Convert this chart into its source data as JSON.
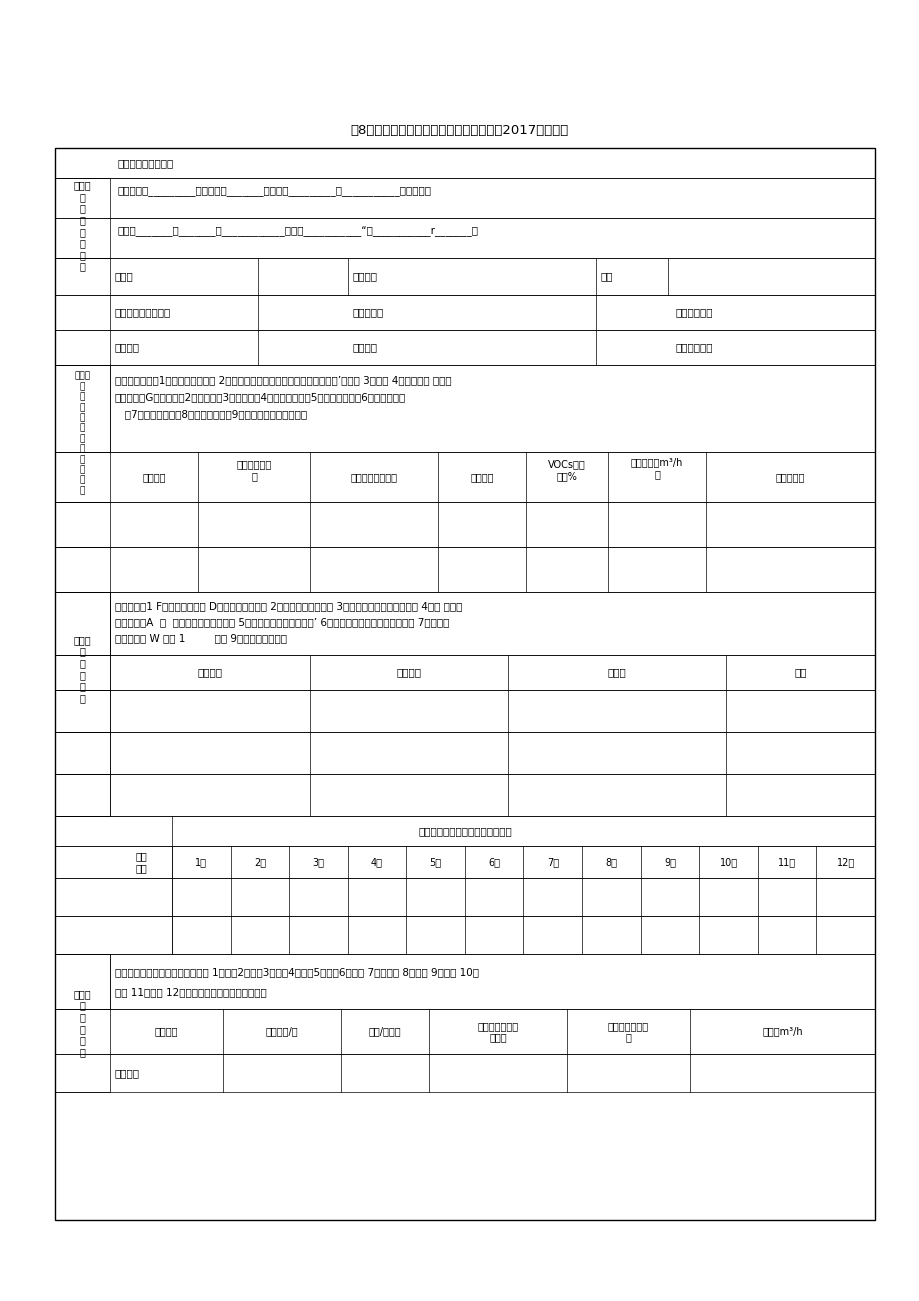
{
  "title": "表8工业设备制造企业调查表（请填报企业2017年数据）",
  "bg_color": "#ffffff",
  "font_size": 7.5,
  "row1_text": "单位名称（公章）：",
  "row2_text": "单位地址：_________区（县）－_______乡（镇）_________村___________路、门牌号",
  "row3_text": "经度：_______度_______分____________秒纬居___________“度___________r_______秒",
  "sec1_label": "一、工\n业\n企\n业\n基\n本\n情\n况",
  "lxr": "联系人",
  "lxdh": "联系电话",
  "yx": "邮笱",
  "nscz": "年生产总值（万元）",
  "nscts": "年生产天数",
  "rscxss": "日生产小时数",
  "hymc": "行业名称",
  "hydm": "行业代码",
  "hpyss": "环保验收时间",
  "sec2_label": "二、生\n物\n质\n锅\n炉\n及\n废\n气\n治\n理\n信\n息",
  "desc1": "生物质燃料类型1）生物质成型燃料 2）秸秆（玉米、小麦、水稻、高粱、油菜’其它） 3）薄材 4）牢畜粪便 处理技",
  "desc2": "术请选择：G）冷凝法（2）吸收法（3）吸附法（4）直接燃烧法（5）専化燃烧法（6）専化氧化法",
  "desc3": "   （7）専化还原法（8）冷凝净化法（9）其他方法（列出名称）",
  "glbh": "锅炉编号",
  "swzrlfl": "生物质燃料类\n型",
  "swzxh": "生物质消耗（吨）",
  "cljs": "处理技术",
  "vocs": "VOCs治理\n效率%",
  "sblfl": "设备风量（m³/h\n）",
  "dpqg": "对应排气筒",
  "sec3_label": "三、产\n品\n产\n量\n信\n息",
  "prod_desc1": "产品类型从1 F列序号中选？： D通用设备制造业、 2）专用设备制造业、 3）汽车零部件及配件制造、 4）铁 也运输",
  "prod_desc2": "路、船船、A  才  元空航天设备制造业、 5）电气机械和器材制造业’ 6）计算机制造、通信设备制造、 7）听设备",
  "prod_desc3": "广播电视设 W 和其 1         制造 9）半导体电子原件",
  "ppmc": "产品名称",
  "pplx": "产品类型",
  "npcl": "年产量",
  "dw": "单位",
  "monthly_title": "产品月产量信息（单位与上相同）",
  "ppmc2": "产品\n名称",
  "months": [
    "1月",
    "2月",
    "3月",
    "4月",
    "5月",
    "6月",
    "7月",
    "8月",
    "9月",
    "10月",
    "11月",
    "12月"
  ],
  "sec4_label": "四、生\n产\n车\n间\n信\n息",
  "shop_desc1": "生产工序类型从下列序号中选择： 1）清流2）蒸的3）光刻4）显待5）刻蛀6）抛光 7）前处理 8）丝印 9）喷漆 10）",
  "shop_desc2": "喷塑 11）封漏 12）其它（填写具体的工序名称）",
  "scjj": "生产车间",
  "scgy": "生产工艺/序",
  "gyzsl": "工艺/序数量",
  "sfmb": "车间或工艺线是\n否密闭",
  "ffsf": "车间废气排放方\n式",
  "pfsl": "排风量m³/h",
  "tzcj": "涂装车间"
}
